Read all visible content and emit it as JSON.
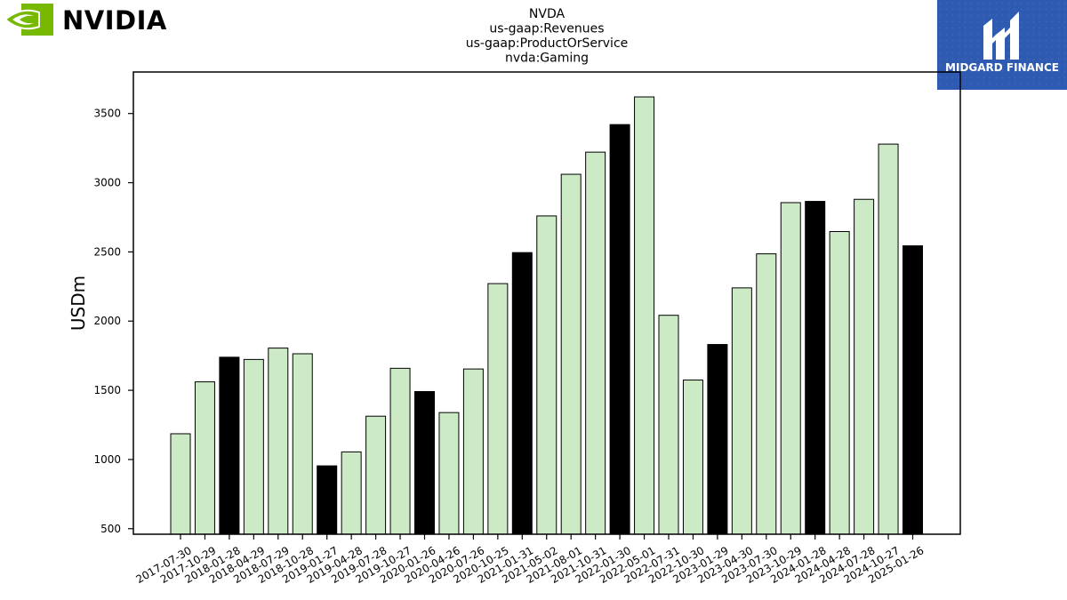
{
  "logos": {
    "left_brand": "NVIDIA",
    "right_brand": "MIDGARD FINANCE",
    "colors": {
      "nvidia_green": "#76b900",
      "midgard_blue": "#2f5ab2"
    }
  },
  "chart_data": {
    "type": "bar",
    "title_lines": [
      "NVDA",
      "us-gaap:Revenues",
      "us-gaap:ProductOrService",
      "nvda:Gaming"
    ],
    "xlabel": "",
    "ylabel": "USDm",
    "ylim": [
      460,
      3800
    ],
    "yticks": [
      500,
      1000,
      1500,
      2000,
      2500,
      3000,
      3500
    ],
    "grid": false,
    "legend": "none",
    "colors": {
      "quarter": "#cdeac6",
      "fiscal_year_end": "#000000",
      "edge": "#000000"
    },
    "categories": [
      "2017-07-30",
      "2017-10-29",
      "2018-01-28",
      "2018-04-29",
      "2018-07-29",
      "2018-10-28",
      "2019-01-27",
      "2019-04-28",
      "2019-07-28",
      "2019-10-27",
      "2020-01-26",
      "2020-04-26",
      "2020-07-26",
      "2020-10-25",
      "2021-01-31",
      "2021-05-02",
      "2021-08-01",
      "2021-10-31",
      "2022-01-30",
      "2022-05-01",
      "2022-07-31",
      "2022-10-30",
      "2023-01-29",
      "2023-04-30",
      "2023-07-30",
      "2023-10-29",
      "2024-01-28",
      "2024-04-28",
      "2024-07-28",
      "2024-10-27",
      "2025-01-26"
    ],
    "values": [
      1186,
      1561,
      1739,
      1723,
      1805,
      1764,
      954,
      1055,
      1313,
      1659,
      1491,
      1339,
      1654,
      2271,
      2495,
      2760,
      3061,
      3221,
      3420,
      3620,
      2042,
      1574,
      1831,
      2240,
      2486,
      2856,
      2865,
      2647,
      2880,
      3279,
      2544
    ],
    "highlight": [
      false,
      false,
      true,
      false,
      false,
      false,
      true,
      false,
      false,
      false,
      true,
      false,
      false,
      false,
      true,
      false,
      false,
      false,
      true,
      false,
      false,
      false,
      true,
      false,
      false,
      false,
      true,
      false,
      false,
      false,
      true
    ]
  }
}
